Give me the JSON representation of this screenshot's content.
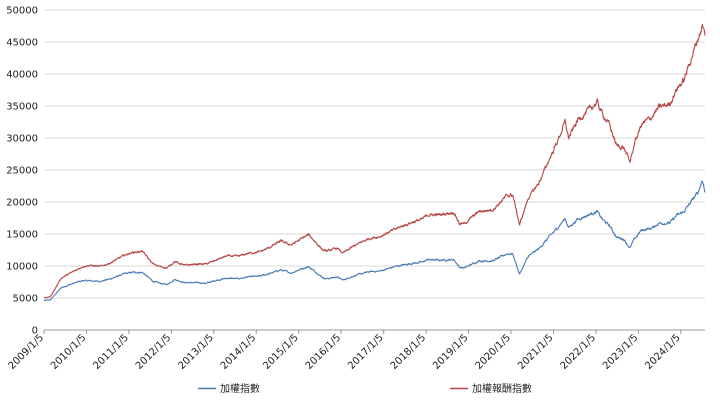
{
  "chart_data": {
    "type": "line",
    "title": "",
    "xlabel": "",
    "ylabel": "",
    "ylim": [
      0,
      50000
    ],
    "yticks": [
      0,
      5000,
      10000,
      15000,
      20000,
      25000,
      30000,
      35000,
      40000,
      45000,
      50000
    ],
    "ytick_labels": [
      "0",
      "5000",
      "10000",
      "15000",
      "20000",
      "25000",
      "30000",
      "35000",
      "40000",
      "45000",
      "50000"
    ],
    "xlim": [
      "2009-01-05",
      "2024-07-31"
    ],
    "xtick_labels": [
      "2009/1/5",
      "2010/1/5",
      "2011/1/5",
      "2012/1/5",
      "2013/1/5",
      "2014/1/5",
      "2015/1/5",
      "2016/1/5",
      "2017/1/5",
      "2018/1/5",
      "2019/1/5",
      "2020/1/5",
      "2021/1/5",
      "2022/1/5",
      "2023/1/5",
      "2024/1/5"
    ],
    "grid": "horizontal",
    "legend_position": "bottom",
    "series": [
      {
        "name": "加權指數",
        "color": "#4a7ab5",
        "x": [
          "2009-01-05",
          "2009-03-01",
          "2009-06-01",
          "2009-09-01",
          "2009-12-01",
          "2010-02-01",
          "2010-05-01",
          "2010-08-01",
          "2010-12-01",
          "2011-02-01",
          "2011-05-01",
          "2011-08-01",
          "2011-10-01",
          "2011-12-01",
          "2012-02-01",
          "2012-05-01",
          "2012-08-01",
          "2012-11-01",
          "2013-02-01",
          "2013-05-01",
          "2013-08-01",
          "2013-11-01",
          "2014-02-01",
          "2014-05-01",
          "2014-08-01",
          "2014-11-01",
          "2015-02-01",
          "2015-04-01",
          "2015-08-01",
          "2015-09-01",
          "2015-12-01",
          "2016-01-20",
          "2016-05-01",
          "2016-09-01",
          "2016-12-01",
          "2017-05-01",
          "2017-09-01",
          "2017-12-01",
          "2018-01-20",
          "2018-05-01",
          "2018-09-01",
          "2018-10-20",
          "2018-12-01",
          "2019-04-01",
          "2019-08-01",
          "2019-12-01",
          "2020-01-20",
          "2020-03-19",
          "2020-06-01",
          "2020-09-01",
          "2020-12-01",
          "2021-02-01",
          "2021-04-15",
          "2021-05-15",
          "2021-08-01",
          "2021-12-01",
          "2022-01-15",
          "2022-03-01",
          "2022-05-01",
          "2022-07-01",
          "2022-09-01",
          "2022-10-25",
          "2022-12-01",
          "2023-02-01",
          "2023-05-01",
          "2023-07-01",
          "2023-10-01",
          "2023-12-01",
          "2024-02-01",
          "2024-04-01",
          "2024-06-01",
          "2024-07-10",
          "2024-07-31"
        ],
        "values": [
          4600,
          4700,
          6600,
          7200,
          7700,
          7700,
          7600,
          8000,
          8800,
          9000,
          9000,
          7600,
          7300,
          7100,
          7900,
          7400,
          7400,
          7300,
          7800,
          8100,
          8000,
          8300,
          8400,
          8800,
          9400,
          8900,
          9600,
          9900,
          8200,
          8000,
          8300,
          7800,
          8500,
          9100,
          9200,
          10000,
          10400,
          10600,
          11000,
          10900,
          11000,
          9800,
          9700,
          10800,
          10800,
          11900,
          11900,
          8700,
          11500,
          12700,
          14600,
          15800,
          17400,
          16000,
          17300,
          18200,
          18500,
          17300,
          16300,
          14500,
          14200,
          12800,
          14200,
          15600,
          15900,
          16700,
          16700,
          17900,
          18500,
          20000,
          21500,
          23500,
          21500
        ]
      },
      {
        "name": "加權報酬指數",
        "color": "#b84545",
        "x": [
          "2009-01-05",
          "2009-03-01",
          "2009-06-01",
          "2009-09-01",
          "2009-12-01",
          "2010-02-01",
          "2010-05-01",
          "2010-08-01",
          "2010-12-01",
          "2011-02-01",
          "2011-05-01",
          "2011-08-01",
          "2011-10-01",
          "2011-12-01",
          "2012-02-01",
          "2012-05-01",
          "2012-08-01",
          "2012-11-01",
          "2013-02-01",
          "2013-05-01",
          "2013-08-01",
          "2013-11-01",
          "2014-02-01",
          "2014-05-01",
          "2014-08-01",
          "2014-11-01",
          "2015-02-01",
          "2015-04-01",
          "2015-08-01",
          "2015-09-01",
          "2015-12-01",
          "2016-01-20",
          "2016-05-01",
          "2016-09-01",
          "2016-12-01",
          "2017-05-01",
          "2017-09-01",
          "2017-12-01",
          "2018-01-20",
          "2018-05-01",
          "2018-09-01",
          "2018-10-20",
          "2018-12-01",
          "2019-04-01",
          "2019-08-01",
          "2019-12-01",
          "2020-01-20",
          "2020-03-19",
          "2020-06-01",
          "2020-09-01",
          "2020-12-01",
          "2021-02-01",
          "2021-04-15",
          "2021-05-15",
          "2021-08-01",
          "2021-12-01",
          "2022-01-15",
          "2022-03-01",
          "2022-05-01",
          "2022-07-01",
          "2022-09-01",
          "2022-10-25",
          "2022-12-01",
          "2023-02-01",
          "2023-05-01",
          "2023-07-01",
          "2023-10-01",
          "2023-12-01",
          "2024-02-01",
          "2024-04-01",
          "2024-06-01",
          "2024-07-10",
          "2024-07-31"
        ],
        "values": [
          5000,
          5200,
          8100,
          9000,
          9900,
          10100,
          9900,
          10500,
          11700,
          12100,
          12300,
          10300,
          9900,
          9700,
          10700,
          10100,
          10300,
          10300,
          11000,
          11600,
          11500,
          12000,
          12200,
          12900,
          13900,
          13300,
          14300,
          14900,
          12500,
          12300,
          12800,
          12000,
          13200,
          14300,
          14600,
          15900,
          16800,
          17300,
          18000,
          18000,
          18400,
          16600,
          16600,
          18500,
          18800,
          21000,
          21100,
          16400,
          20600,
          23000,
          26700,
          29200,
          32500,
          30000,
          32800,
          34800,
          35600,
          33800,
          32100,
          28800,
          28500,
          26200,
          29100,
          32100,
          33300,
          34800,
          35300,
          37700,
          39000,
          42300,
          45600,
          47500,
          46000
        ]
      }
    ]
  }
}
